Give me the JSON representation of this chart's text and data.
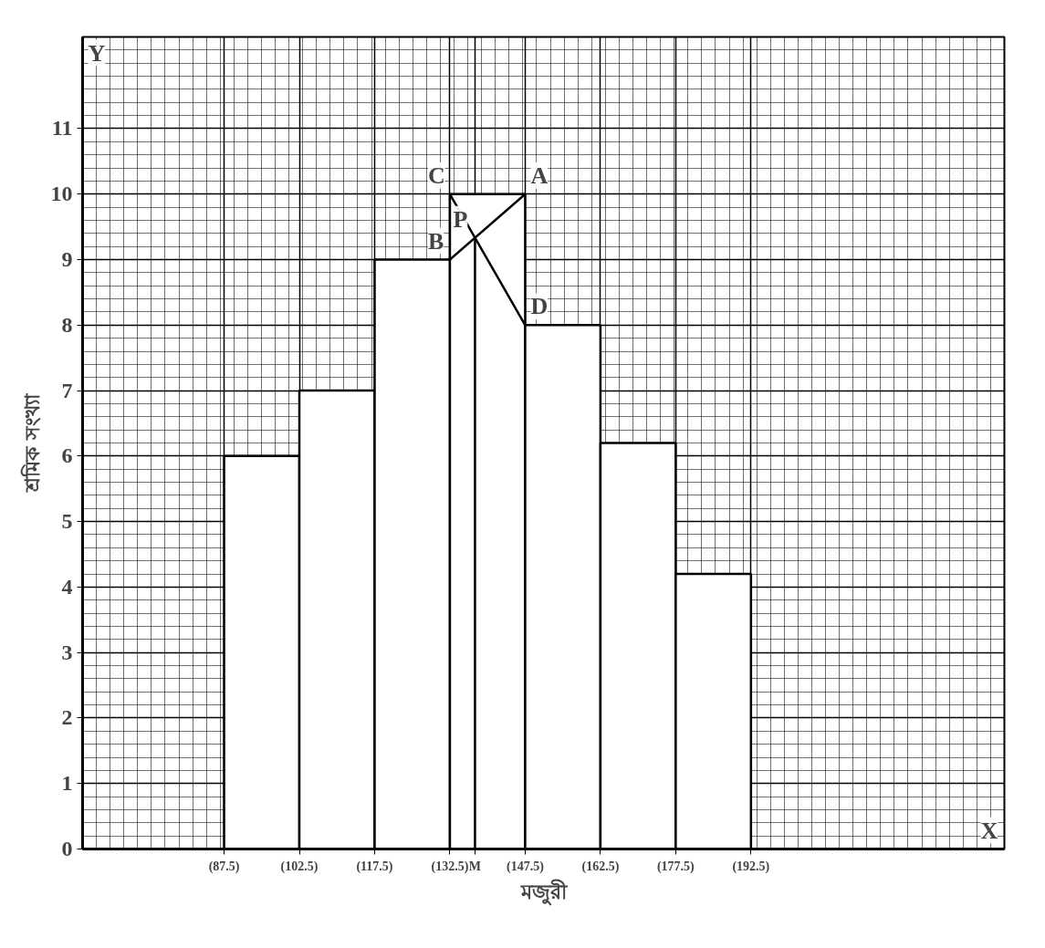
{
  "chart_data": {
    "type": "histogram",
    "xlabel": "মজুরী",
    "ylabel": "শ্রমিক সংখ্যা",
    "bins": [
      87.5,
      102.5,
      117.5,
      132.5,
      147.5,
      162.5,
      177.5,
      192.5
    ],
    "values": [
      6,
      7,
      9,
      10,
      8,
      6.2,
      4.2
    ],
    "color": "#ffffff",
    "series": [
      {
        "type": "line",
        "color": "#000000",
        "x": [
          132.5,
          147.5
        ],
        "values": [
          9,
          10
        ]
      },
      {
        "type": "line",
        "color": "#000000",
        "x": [
          132.5,
          147.5
        ],
        "values": [
          10,
          8
        ]
      },
      {
        "type": "line",
        "color": "#000000",
        "x": [
          137.5,
          137.5
        ],
        "values": [
          9.33,
          0
        ]
      }
    ],
    "xlim": [
      59.3,
      243
    ],
    "ylim": [
      0,
      12.4
    ],
    "xticks": [
      {
        "value": 87.5,
        "label": "(87.5)"
      },
      {
        "value": 102.5,
        "label": "(102.5)"
      },
      {
        "value": 117.5,
        "label": "(117.5)"
      },
      {
        "value": 132.5,
        "label": "(132.5)"
      },
      {
        "value": 137.5,
        "label": "M"
      },
      {
        "value": 147.5,
        "label": "(147.5)"
      },
      {
        "value": 162.5,
        "label": "(162.5)"
      },
      {
        "value": 177.5,
        "label": "(177.5)"
      },
      {
        "value": 192.5,
        "label": "(192.5)"
      }
    ],
    "yticks": [
      0,
      1,
      2,
      3,
      4,
      5,
      6,
      7,
      8,
      9,
      10,
      11
    ],
    "grid": true,
    "annotations": [
      {
        "text": "C",
        "x": 132.5,
        "y": 10
      },
      {
        "text": "A",
        "x": 147.5,
        "y": 10
      },
      {
        "text": "B",
        "x": 132.5,
        "y": 9
      },
      {
        "text": "D",
        "x": 147.5,
        "y": 8
      },
      {
        "text": "P",
        "x": 137.5,
        "y": 9.33
      },
      "X",
      "Y"
    ]
  }
}
